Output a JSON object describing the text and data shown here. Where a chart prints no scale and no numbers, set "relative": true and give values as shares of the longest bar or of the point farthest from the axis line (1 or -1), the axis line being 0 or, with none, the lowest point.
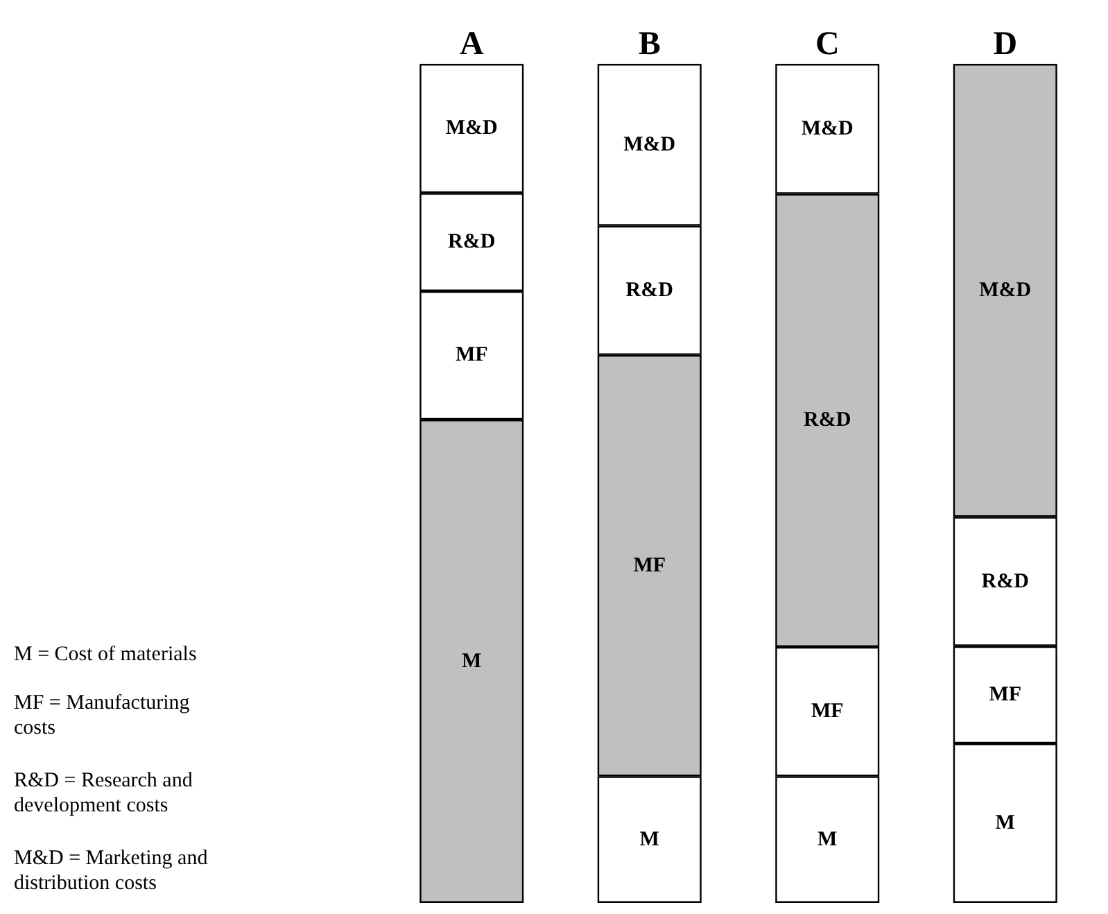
{
  "chart_data": {
    "type": "bar",
    "stacked": true,
    "relative": true,
    "categories": [
      "A",
      "B",
      "C",
      "D"
    ],
    "series": [
      {
        "name": "M",
        "colors": [
          "#c0c0c0",
          "#ffffff",
          "#ffffff",
          "#ffffff"
        ],
        "values": [
          0.576,
          0.151,
          0.151,
          0.19
        ]
      },
      {
        "name": "MF",
        "colors": [
          "#ffffff",
          "#c0c0c0",
          "#ffffff",
          "#ffffff"
        ],
        "values": [
          0.153,
          0.502,
          0.154,
          0.116
        ]
      },
      {
        "name": "R&D",
        "colors": [
          "#ffffff",
          "#ffffff",
          "#c0c0c0",
          "#ffffff"
        ],
        "values": [
          0.117,
          0.154,
          0.54,
          0.154
        ]
      },
      {
        "name": "M&D",
        "colors": [
          "#ffffff",
          "#ffffff",
          "#ffffff",
          "#c0c0c0"
        ],
        "values": [
          0.154,
          0.193,
          0.155,
          0.54
        ]
      }
    ],
    "annotations": [
      "M = Cost of materials",
      "MF = Manufacturing costs",
      "R&D = Research and development costs",
      "M&D = Marketing and distribution costs"
    ]
  }
}
